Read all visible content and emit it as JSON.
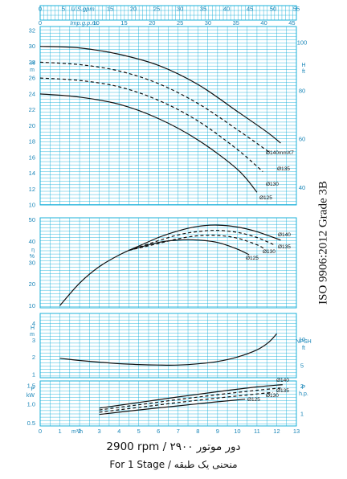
{
  "colors": {
    "grid": "#1bb0da",
    "axis_text": "#1a86b8",
    "curve": "#111111"
  },
  "header": {
    "usgpm_label": "U.S.gpm",
    "usgpm_ticks": [
      "0",
      "5",
      "10",
      "15",
      "20",
      "25",
      "30",
      "35",
      "40",
      "45",
      "50",
      "55"
    ],
    "impgpm_label": "Imp.g.p.m.",
    "impgpm_ticks": [
      "0",
      "5",
      "10",
      "15",
      "20",
      "25",
      "30",
      "35",
      "40",
      "45"
    ]
  },
  "footer": {
    "rpm_line": "2900 rpm / ۲۹۰۰ دور موتور",
    "stage_line": "For 1 Stage / منحنی یک طبقه"
  },
  "side_label": "ISO 9906:2012 Grade 3B",
  "chart_data": [
    {
      "type": "line",
      "name": "head",
      "ylabel_left": "H m",
      "ylabel_right": "H ft",
      "xlim": [
        0,
        13
      ],
      "ylim": [
        10,
        32.5
      ],
      "y_ticks": [
        10,
        12,
        14,
        16,
        18,
        20,
        22,
        24,
        26,
        28,
        30,
        32
      ],
      "right_ticks": [
        40,
        60,
        80,
        100
      ],
      "series": [
        {
          "name": "Ø140mmX7",
          "dashed": false,
          "x": [
            0,
            2,
            4,
            6,
            8,
            10,
            11.5,
            12.2
          ],
          "y": [
            30,
            29.8,
            29,
            27.6,
            25.2,
            21.8,
            19.2,
            17.8
          ]
        },
        {
          "name": "Ø135",
          "dashed": true,
          "x": [
            0,
            2,
            4,
            6,
            8,
            10,
            11.6
          ],
          "y": [
            28,
            27.7,
            26.9,
            25.3,
            22.8,
            19.5,
            16.7
          ]
        },
        {
          "name": "Ø130",
          "dashed": true,
          "x": [
            0,
            2,
            4,
            6,
            8,
            10,
            11.3
          ],
          "y": [
            26,
            25.7,
            24.9,
            23.2,
            20.6,
            17,
            14.2
          ]
        },
        {
          "name": "Ø125",
          "dashed": false,
          "x": [
            0,
            2,
            4,
            6,
            8,
            10,
            11
          ],
          "y": [
            24,
            23.6,
            22.7,
            20.9,
            18.2,
            14.5,
            11.6
          ]
        }
      ]
    },
    {
      "type": "line",
      "name": "efficiency",
      "ylabel_left": "η %",
      "xlim": [
        0,
        13
      ],
      "ylim": [
        9,
        51
      ],
      "y_ticks": [
        10,
        20,
        30,
        40,
        50
      ],
      "series": [
        {
          "name": "Ø140",
          "dashed": false,
          "x": [
            1,
            2,
            3,
            4,
            5,
            6,
            7,
            8,
            9,
            10,
            11,
            12.2
          ],
          "y": [
            10,
            20.5,
            28.2,
            33.6,
            37.8,
            41.8,
            44.9,
            47,
            47.6,
            46.7,
            44.5,
            40.6
          ]
        },
        {
          "name": "Ø135",
          "dashed": true,
          "x": [
            4.5,
            6,
            7,
            8,
            9,
            10,
            11,
            11.9
          ],
          "y": [
            35.8,
            40.3,
            43,
            44.6,
            45.1,
            44.2,
            41.8,
            38.3
          ]
        },
        {
          "name": "Ø130",
          "dashed": true,
          "x": [
            4.5,
            6,
            7,
            8,
            9,
            10,
            11,
            11.4
          ],
          "y": [
            35.8,
            39,
            41.2,
            42.6,
            42.8,
            41.5,
            38.4,
            36.4
          ]
        },
        {
          "name": "Ø125",
          "dashed": false,
          "x": [
            4.5,
            6,
            7,
            8,
            9,
            10,
            10.6
          ],
          "y": [
            35.8,
            39.5,
            40.6,
            40.6,
            39.5,
            36.4,
            33.8
          ]
        }
      ]
    },
    {
      "type": "line",
      "name": "npsh",
      "ylabel_left": "H m",
      "ylabel_right": "NPSH ft",
      "xlim": [
        0,
        13
      ],
      "ylim": [
        0.8,
        4.6
      ],
      "y_ticks": [
        1,
        2,
        3,
        4
      ],
      "right_ticks": [
        5,
        10
      ],
      "series": [
        {
          "name": "NPSH",
          "dashed": false,
          "x": [
            1,
            2,
            3,
            4,
            5,
            6,
            7,
            8,
            9,
            10,
            11,
            11.6,
            12
          ],
          "y": [
            1.95,
            1.82,
            1.72,
            1.63,
            1.58,
            1.55,
            1.55,
            1.62,
            1.76,
            2.02,
            2.45,
            2.9,
            3.4
          ]
        }
      ]
    },
    {
      "type": "line",
      "name": "power",
      "ylabel_left": "P kW",
      "ylabel_right": "P h.p.",
      "xlabel": "m³/h",
      "xlim": [
        0,
        13
      ],
      "ylim": [
        0.42,
        1.63
      ],
      "y_ticks": [
        0.5,
        1.0,
        1.5
      ],
      "y_tick_labels": [
        "0.5",
        "1.0",
        "1.5"
      ],
      "right_ticks": [
        1,
        2
      ],
      "x_ticks": [
        0,
        1,
        2,
        3,
        4,
        5,
        6,
        7,
        8,
        9,
        10,
        11,
        12,
        13
      ],
      "series": [
        {
          "name": "Ø140",
          "dashed": false,
          "x": [
            3,
            5,
            7,
            9,
            11,
            12.3
          ],
          "y": [
            0.9,
            1.05,
            1.2,
            1.34,
            1.47,
            1.53
          ]
        },
        {
          "name": "Ø135",
          "dashed": true,
          "x": [
            3,
            5,
            7,
            9,
            11,
            12.2
          ],
          "y": [
            0.85,
            0.99,
            1.13,
            1.26,
            1.38,
            1.44
          ]
        },
        {
          "name": "Ø130",
          "dashed": true,
          "x": [
            3,
            5,
            7,
            9,
            11,
            11.8
          ],
          "y": [
            0.79,
            0.92,
            1.05,
            1.17,
            1.28,
            1.32
          ]
        },
        {
          "name": "Ø125",
          "dashed": false,
          "x": [
            3,
            5,
            7,
            9,
            10.4
          ],
          "y": [
            0.73,
            0.85,
            0.96,
            1.07,
            1.14
          ]
        }
      ]
    }
  ]
}
